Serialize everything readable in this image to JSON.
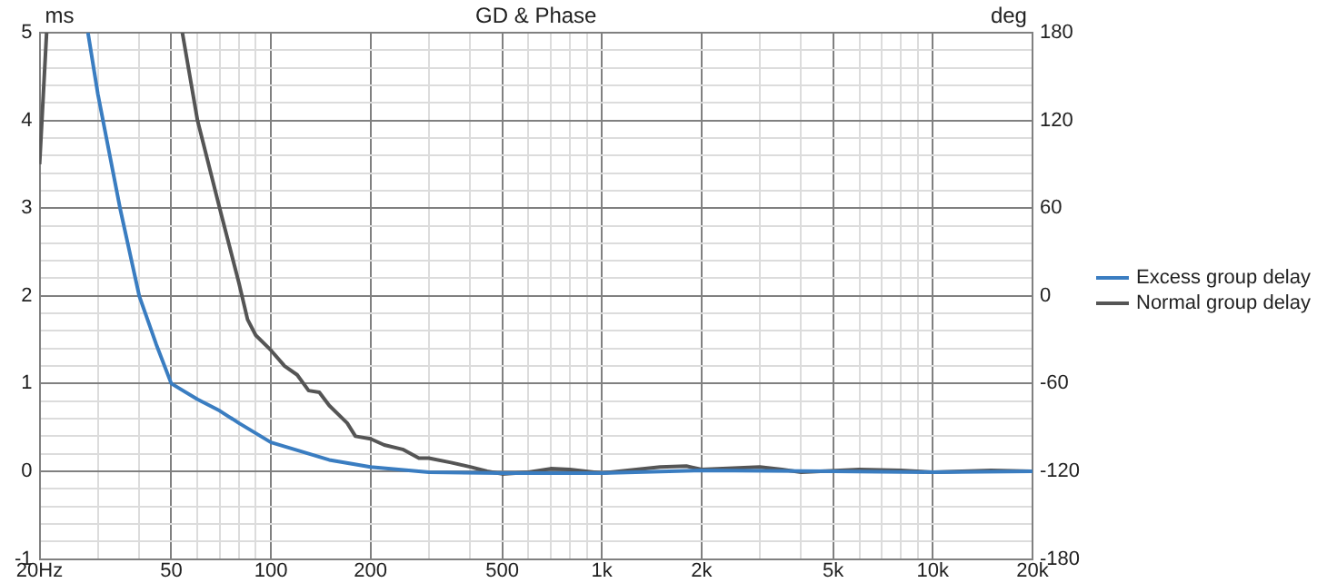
{
  "chart_data": {
    "type": "line",
    "title": "GD & Phase",
    "ylabel": "ms",
    "y2label": "deg",
    "log": "x",
    "xlim": [
      20,
      20000
    ],
    "xticks": [
      {
        "value": 20,
        "label": "20Hz"
      },
      {
        "value": 30,
        "label": null
      },
      {
        "value": 40,
        "label": null
      },
      50,
      {
        "value": 60,
        "label": null
      },
      {
        "value": 70,
        "label": null
      },
      {
        "value": 80,
        "label": null
      },
      {
        "value": 90,
        "label": null
      },
      100,
      200,
      {
        "value": 300,
        "label": null
      },
      {
        "value": 400,
        "label": null
      },
      500,
      {
        "value": 600,
        "label": null
      },
      {
        "value": 700,
        "label": null
      },
      {
        "value": 800,
        "label": null
      },
      {
        "value": 900,
        "label": null
      },
      {
        "value": 1000,
        "label": "1k"
      },
      {
        "value": 2000,
        "label": "2k"
      },
      {
        "value": 3000,
        "label": null
      },
      {
        "value": 4000,
        "label": null
      },
      {
        "value": 5000,
        "label": "5k"
      },
      {
        "value": 6000,
        "label": null
      },
      {
        "value": 7000,
        "label": null
      },
      {
        "value": 8000,
        "label": null
      },
      {
        "value": 9000,
        "label": null
      },
      {
        "value": 10000,
        "label": "10k"
      },
      {
        "value": 20000,
        "label": "20k"
      }
    ],
    "ylim": [
      -1,
      5
    ],
    "yticks": [
      -1,
      {
        "value": -0.8,
        "label": null
      },
      {
        "value": -0.6,
        "label": null
      },
      {
        "value": -0.4,
        "label": null
      },
      {
        "value": -0.2,
        "label": null
      },
      0,
      {
        "value": 0.2,
        "label": null
      },
      {
        "value": 0.4,
        "label": null
      },
      {
        "value": 0.6,
        "label": null
      },
      {
        "value": 0.8,
        "label": null
      },
      1,
      {
        "value": 1.2,
        "label": null
      },
      {
        "value": 1.4,
        "label": null
      },
      {
        "value": 1.6,
        "label": null
      },
      {
        "value": 1.8,
        "label": null
      },
      2,
      {
        "value": 2.2,
        "label": null
      },
      {
        "value": 2.4,
        "label": null
      },
      {
        "value": 2.6,
        "label": null
      },
      {
        "value": 2.8,
        "label": null
      },
      3,
      {
        "value": 3.2,
        "label": null
      },
      {
        "value": 3.4,
        "label": null
      },
      {
        "value": 3.6,
        "label": null
      },
      {
        "value": 3.8,
        "label": null
      },
      4,
      {
        "value": 4.2,
        "label": null
      },
      {
        "value": 4.4,
        "label": null
      },
      {
        "value": 4.6,
        "label": null
      },
      {
        "value": 4.8,
        "label": null
      },
      5
    ],
    "y2lim": [
      -180,
      180
    ],
    "y2ticks": [
      -180,
      -120,
      -60,
      0,
      60,
      120,
      180
    ],
    "grid": true,
    "legend": "right",
    "marker": "none",
    "line_style": "solid",
    "series": [
      {
        "name": "Excess group delay",
        "color": "#3a7dc1",
        "x": [
          28,
          30,
          35,
          40,
          45,
          50,
          60,
          70,
          80,
          100,
          150,
          200,
          300,
          500,
          1000,
          2000,
          5000,
          10000,
          20000
        ],
        "values": [
          5,
          4.3,
          3,
          2,
          1.45,
          1,
          0.82,
          0.69,
          0.55,
          0.33,
          0.13,
          0.05,
          -0.01,
          -0.02,
          -0.02,
          0.01,
          0,
          -0.01,
          0
        ]
      },
      {
        "name": "Normal group delay",
        "color": "#555555",
        "x": [
          20,
          21,
          25,
          54,
          60,
          70,
          80,
          85,
          90,
          100,
          110,
          120,
          130,
          140,
          150,
          170,
          180,
          200,
          220,
          250,
          280,
          300,
          350,
          400,
          450,
          500,
          600,
          700,
          800,
          1000,
          1500,
          1800,
          2000,
          3000,
          3500,
          4000,
          6000,
          8000,
          10000,
          15000,
          20000
        ],
        "values": [
          3.5,
          5,
          null,
          5,
          4,
          3,
          2.15,
          1.73,
          1.55,
          1.38,
          1.2,
          1.1,
          0.92,
          0.9,
          0.75,
          0.55,
          0.4,
          0.37,
          0.3,
          0.25,
          0.15,
          0.15,
          0.1,
          0.05,
          0,
          -0.03,
          -0.01,
          0.03,
          0.02,
          -0.02,
          0.05,
          0.06,
          0.02,
          0.05,
          0.02,
          -0.01,
          0.02,
          0.01,
          -0.01,
          0.01,
          0
        ]
      }
    ]
  }
}
